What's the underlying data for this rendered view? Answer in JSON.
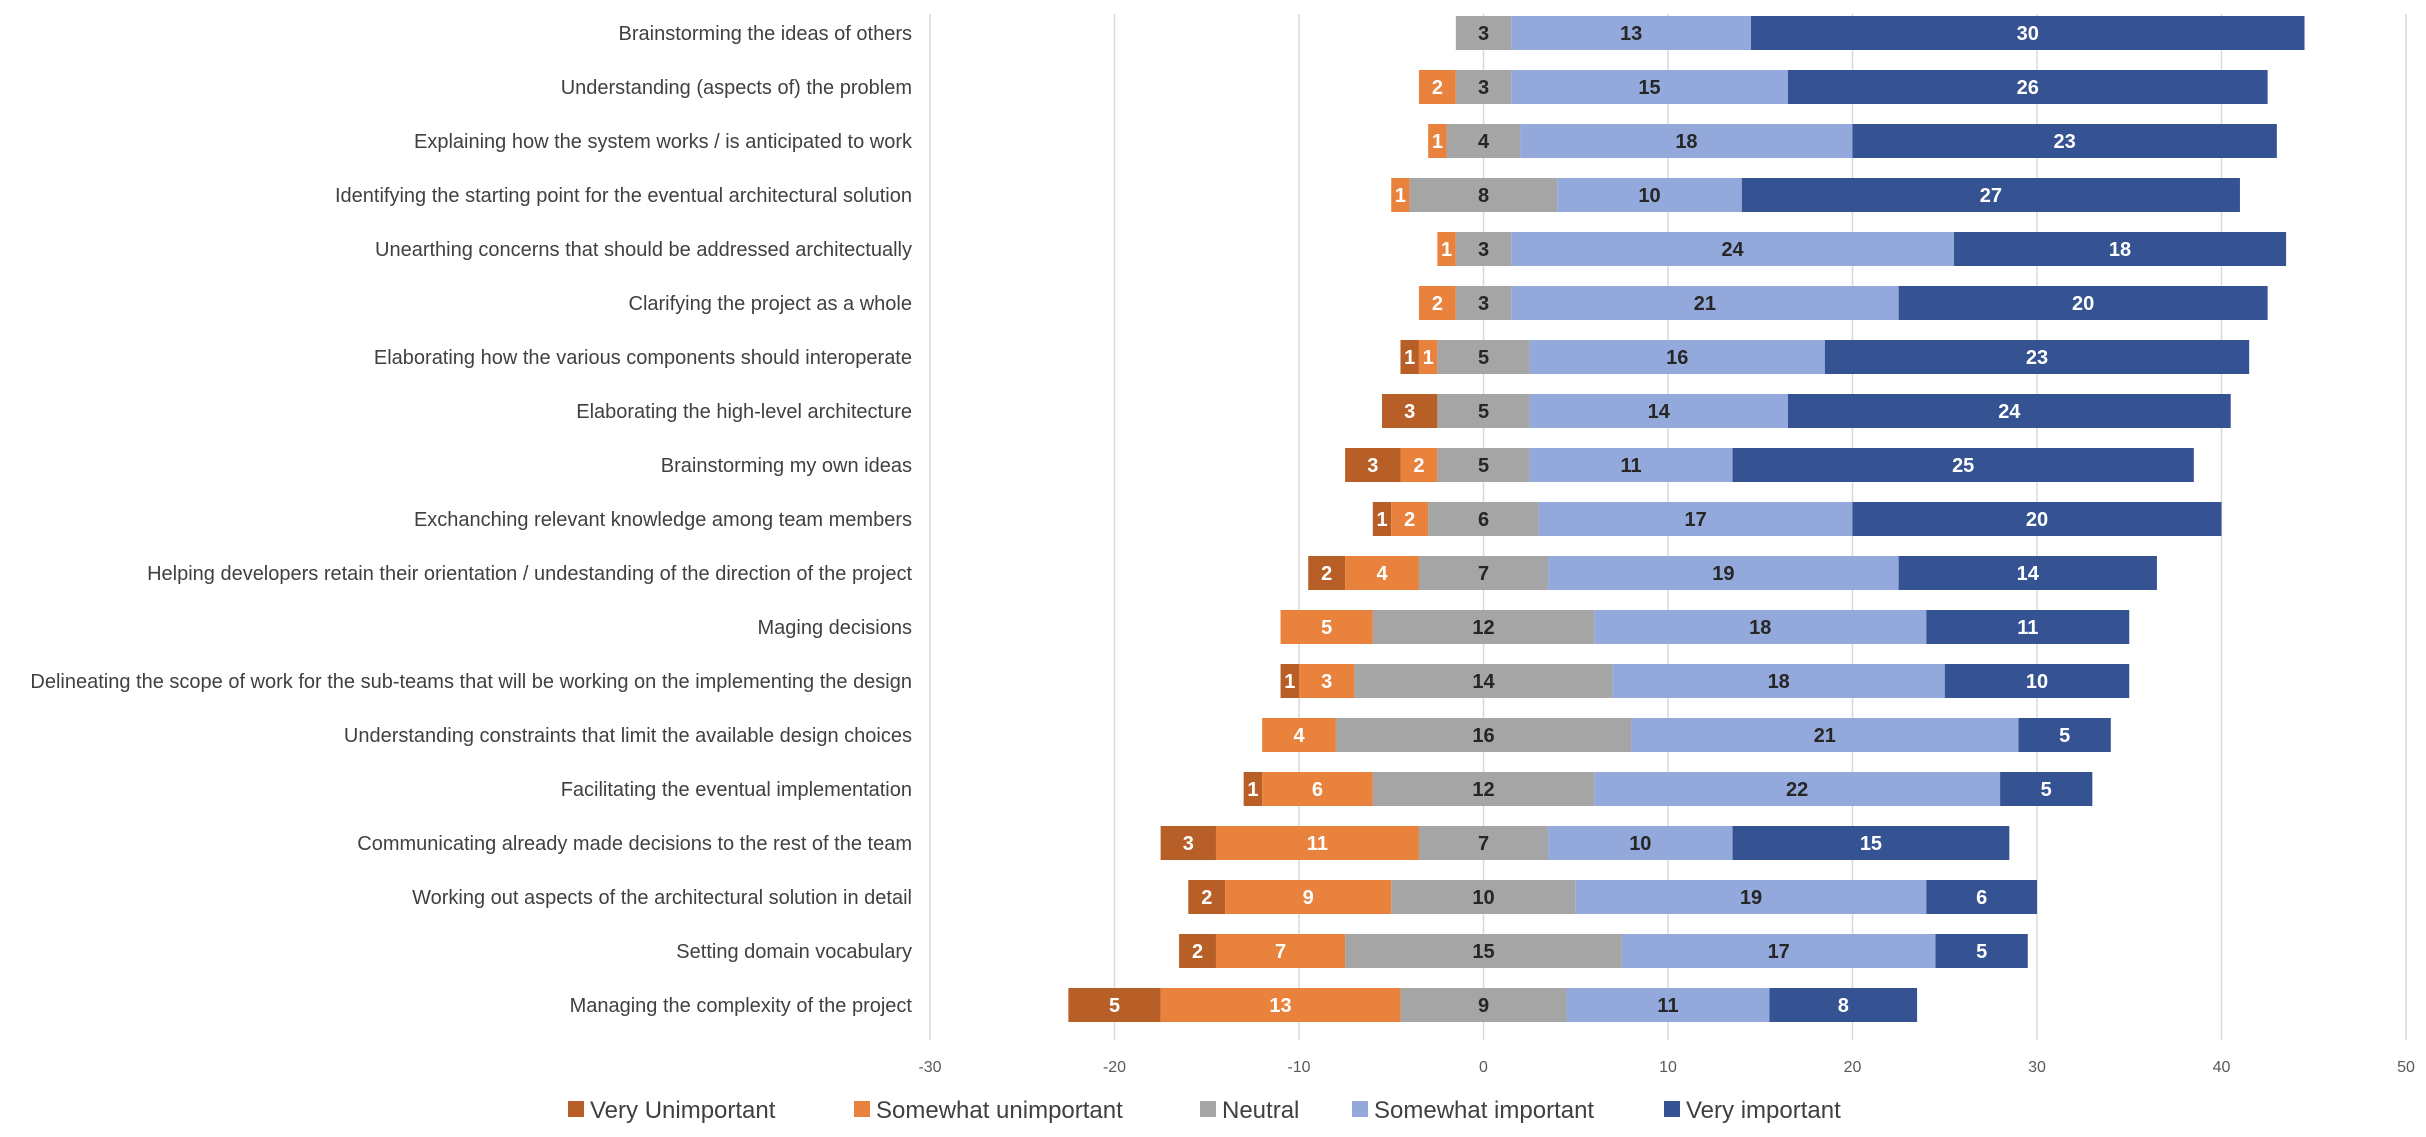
{
  "chart_data": {
    "type": "bar",
    "orientation": "horizontal",
    "stacking": "diverging",
    "title": "",
    "xlabel": "",
    "ylabel": "",
    "xlim": [
      -30,
      50
    ],
    "xticks": [
      -30,
      -20,
      -10,
      0,
      10,
      20,
      30,
      40,
      50
    ],
    "grid": true,
    "legend_position": "bottom",
    "categories": [
      "Brainstorming the ideas of others",
      "Understanding (aspects of) the problem",
      "Explaining how the system works / is anticipated to work",
      "Identifying the starting point for the eventual architectural solution",
      "Unearthing concerns that should be addressed architectually",
      "Clarifying the project as a whole ",
      "Elaborating how the various components should interoperate",
      "Elaborating the high-level architecture",
      "Brainstorming my own ideas",
      "Exchanching relevant knowledge among team members",
      "Helping developers retain their orientation / undestanding of the direction of the project",
      "Maging decisions",
      "Delineating the scope of work for the sub-teams that will be working on the implementing the design",
      "Understanding constraints that limit the available design choices",
      "Facilitating the eventual implementation",
      "Communicating already made decisions to the rest of the team ",
      "Working out aspects of the architectural solution in detail",
      "Setting domain vocabulary",
      "Managing the complexity of the project"
    ],
    "series": [
      {
        "name": "Very Unimportant",
        "color": "#b85f28",
        "label_color": "#ffffff",
        "values": [
          0,
          0,
          0,
          0,
          0,
          0,
          1,
          3,
          3,
          1,
          2,
          0,
          1,
          0,
          1,
          3,
          2,
          2,
          5
        ]
      },
      {
        "name": "Somewhat unimportant",
        "color": "#e8823c",
        "label_color": "#ffffff",
        "values": [
          0,
          2,
          1,
          1,
          1,
          2,
          1,
          0,
          2,
          2,
          4,
          5,
          3,
          4,
          6,
          11,
          9,
          7,
          13
        ]
      },
      {
        "name": "Neutral",
        "color": "#a5a5a5",
        "label_color": "#262626",
        "values": [
          3,
          3,
          4,
          8,
          3,
          3,
          5,
          5,
          5,
          6,
          7,
          12,
          14,
          16,
          12,
          7,
          10,
          15,
          9
        ]
      },
      {
        "name": "Somewhat important",
        "color": "#94a9db",
        "label_color": "#262626",
        "values": [
          13,
          15,
          18,
          10,
          24,
          21,
          16,
          14,
          11,
          17,
          19,
          18,
          18,
          21,
          22,
          10,
          19,
          17,
          11
        ]
      },
      {
        "name": "Very important",
        "color": "#355293",
        "label_color": "#ffffff",
        "values": [
          30,
          26,
          23,
          27,
          18,
          20,
          23,
          24,
          25,
          20,
          14,
          11,
          10,
          5,
          5,
          15,
          6,
          5,
          8
        ]
      }
    ]
  }
}
